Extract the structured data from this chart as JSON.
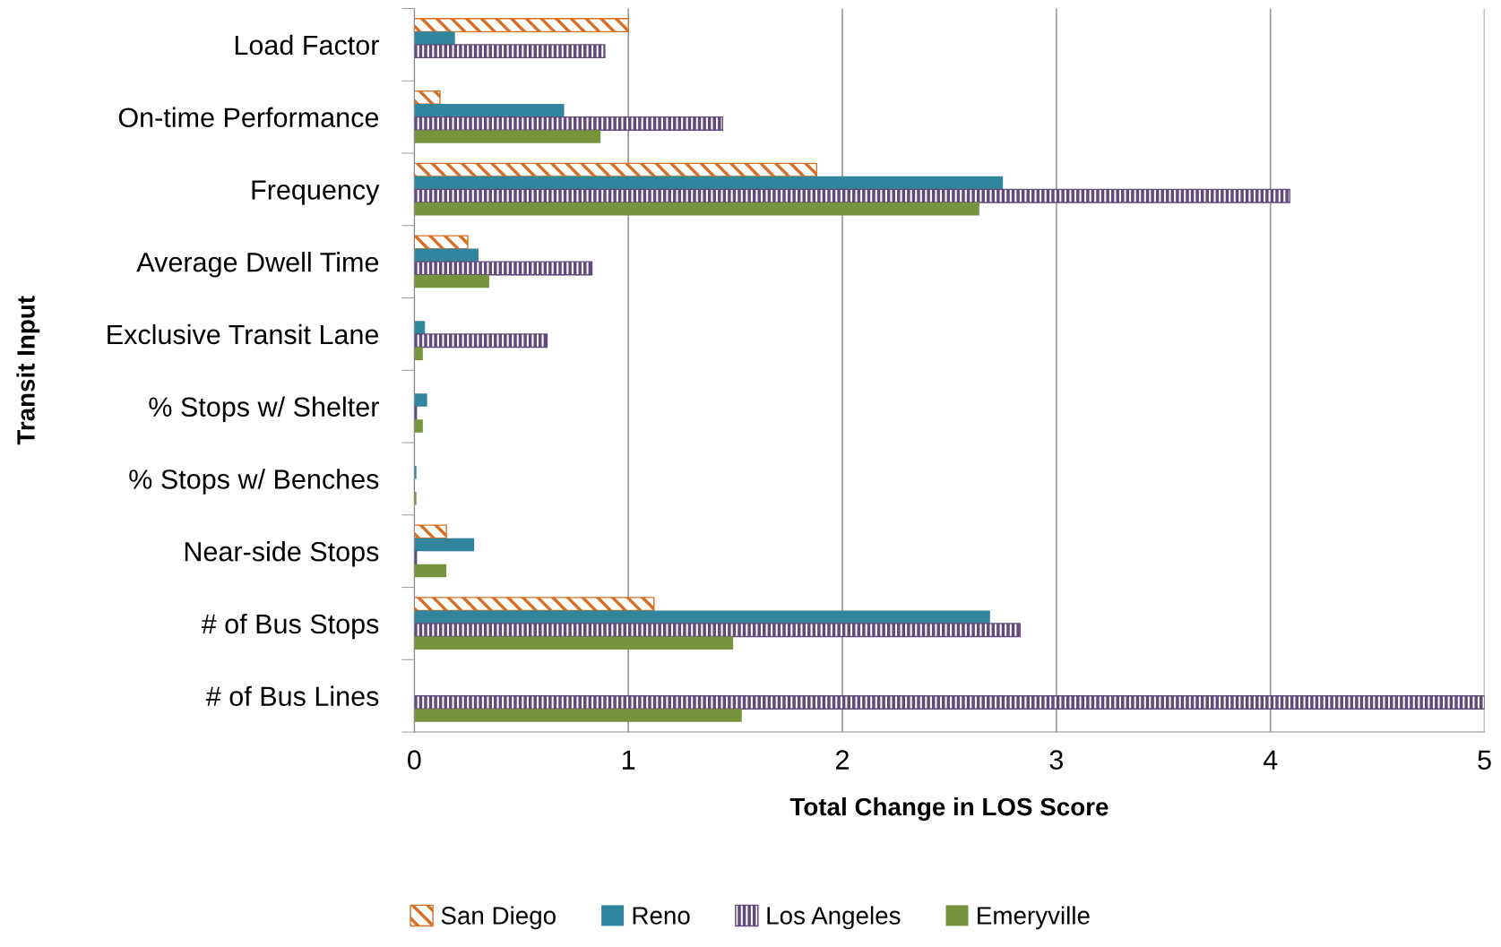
{
  "chart_data": {
    "type": "bar",
    "orientation": "horizontal",
    "xlabel": "Total Change in LOS Score",
    "ylabel": "Transit Input",
    "categories": [
      "Load Factor",
      "On-time Performance",
      "Frequency",
      "Average Dwell Time",
      "Exclusive Transit Lane",
      "% Stops w/ Shelter",
      "% Stops w/ Benches",
      "Near-side Stops",
      "# of Bus Stops",
      "# of Bus Lines"
    ],
    "series": [
      {
        "name": "San Diego",
        "color": "#d86f27",
        "values": [
          1.0,
          0.12,
          1.88,
          0.25,
          0,
          0,
          0,
          0.15,
          1.12,
          0
        ]
      },
      {
        "name": "Reno",
        "color": "#31859c",
        "values": [
          0.19,
          0.7,
          2.75,
          0.3,
          0.05,
          0.06,
          0.01,
          0.28,
          2.69,
          0
        ]
      },
      {
        "name": "Los Angeles",
        "color": "#604a7b",
        "values": [
          0.89,
          1.44,
          4.09,
          0.83,
          0.62,
          0.01,
          0,
          0.01,
          2.83,
          5.0
        ]
      },
      {
        "name": "Emeryville",
        "color": "#77933c",
        "values": [
          0,
          0.87,
          2.64,
          0.35,
          0.04,
          0.04,
          0.01,
          0.15,
          1.49,
          1.53
        ]
      }
    ],
    "xlim": [
      0,
      5
    ],
    "xticks": [
      0,
      1,
      2,
      3,
      4,
      5
    ],
    "grid": "x",
    "legend": "bottom"
  }
}
